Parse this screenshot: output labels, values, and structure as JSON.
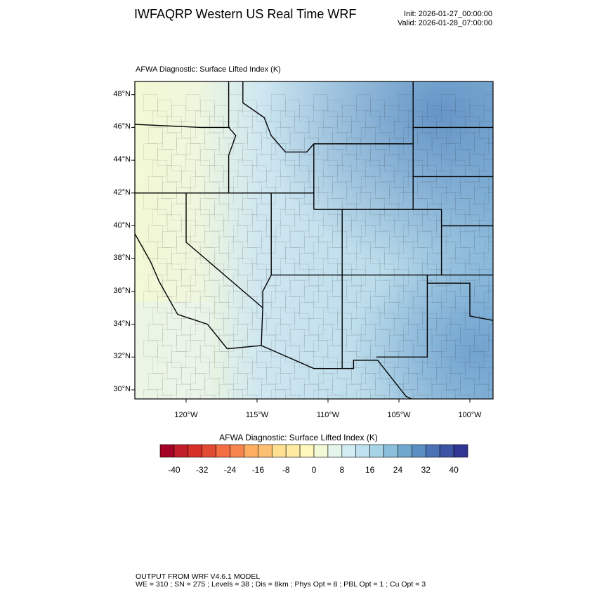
{
  "header": {
    "title": "IWFAQRP Western US Real Time WRF",
    "init": "Init: 2026-01-27_00:00:00",
    "valid": "Valid: 2026-01-28_07:00:00"
  },
  "map": {
    "field_title": "AFWA Diagnostic: Surface Lifted Index   (K)",
    "lat_labels": [
      "48°N",
      "46°N",
      "44°N",
      "42°N",
      "40°N",
      "38°N",
      "36°N",
      "34°N",
      "32°N",
      "30°N"
    ],
    "lon_labels": [
      "120°W",
      "115°W",
      "110°W",
      "105°W",
      "100°W"
    ],
    "extent": {
      "lon": [
        -123.6,
        -98.4
      ],
      "lat": [
        29.5,
        48.8
      ]
    }
  },
  "colorbar": {
    "title": "AFWA Diagnostic: Surface Lifted Index  (K)",
    "tick_labels": [
      "-40",
      "-32",
      "-24",
      "-16",
      "-8",
      "0",
      "8",
      "16",
      "24",
      "32",
      "40"
    ],
    "levels": [
      -44,
      -40,
      -36,
      -32,
      -28,
      -24,
      -20,
      -16,
      -12,
      -8,
      -4,
      0,
      4,
      8,
      12,
      16,
      20,
      24,
      28,
      32,
      36,
      40,
      44
    ],
    "colors": [
      "#a50026",
      "#c21d2b",
      "#d73027",
      "#e34a33",
      "#f46d43",
      "#f7854e",
      "#fdae61",
      "#fdbf71",
      "#fee090",
      "#feeaa0",
      "#fff7bc",
      "#f2f9d6",
      "#e6f5ec",
      "#d2ecf3",
      "#bfe1ef",
      "#a6d3e6",
      "#8bbfdc",
      "#70a7cf",
      "#5b8fc4",
      "#4a72b5",
      "#3b55a4",
      "#313695"
    ]
  },
  "footer": {
    "line1": "OUTPUT FROM WRF V4.6.1 MODEL",
    "line2": "WE = 310 ; SN = 275 ; Levels = 38 ; Dis = 8km ; Phys Opt = 8 ; PBL Opt = 1 ; Cu Opt = 3"
  }
}
